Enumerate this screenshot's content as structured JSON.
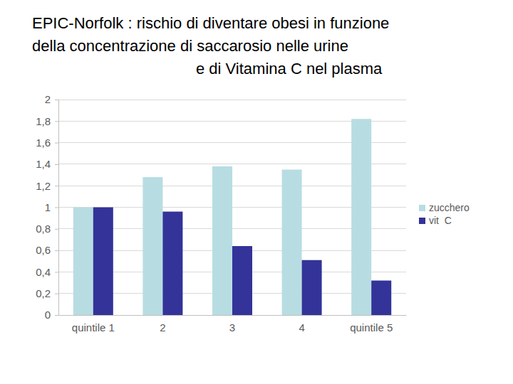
{
  "chart_data": {
    "type": "bar",
    "title": "EPIC-Norfolk : rischio di diventare obesi in funzione\ndella concentrazione di saccarosio nelle urine\ne di Vitamina C nel plasma",
    "categories": [
      "quintile 1",
      "2",
      "3",
      "4",
      "quintile 5"
    ],
    "series": [
      {
        "name": "zucchero",
        "color": "#b7dde2",
        "values": [
          1.0,
          1.28,
          1.38,
          1.35,
          1.82
        ]
      },
      {
        "name": "vit  C",
        "color": "#333399",
        "values": [
          1.0,
          0.96,
          0.64,
          0.51,
          0.32
        ]
      }
    ],
    "ylim": [
      0,
      2
    ],
    "yticks": [
      0,
      {
        "value": 0.2,
        "label": "0,2"
      },
      {
        "value": 0.4,
        "label": "0,4"
      },
      {
        "value": 0.6,
        "label": "0,6"
      },
      {
        "value": 0.8,
        "label": "0,8"
      },
      1,
      {
        "value": 1.2,
        "label": "1,2"
      },
      {
        "value": 1.4,
        "label": "1,4"
      },
      {
        "value": 1.6,
        "label": "1,6"
      },
      {
        "value": 1.8,
        "label": "1,8"
      },
      2
    ],
    "grid": true,
    "legend": "right"
  }
}
